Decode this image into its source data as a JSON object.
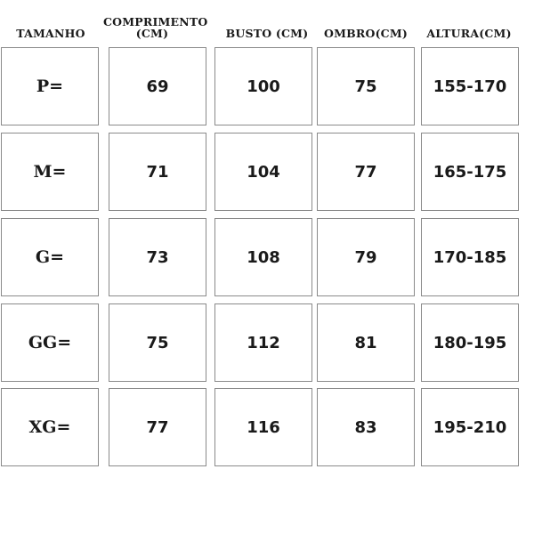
{
  "headers": [
    "TAMANHO",
    "COMPRIMENTO (CM)",
    "BUSTO (CM)",
    "OMBRO(CM)",
    "ALTURA(CM)"
  ],
  "rows": [
    [
      "P=",
      "69",
      "100",
      "75",
      "155-170"
    ],
    [
      "M=",
      "71",
      "104",
      "77",
      "165-175"
    ],
    [
      "G=",
      "73",
      "108",
      "79",
      "170-185"
    ],
    [
      "GG=",
      "75",
      "112",
      "81",
      "180-195"
    ],
    [
      "XG=",
      "77",
      "116",
      "83",
      "195-210"
    ]
  ]
}
